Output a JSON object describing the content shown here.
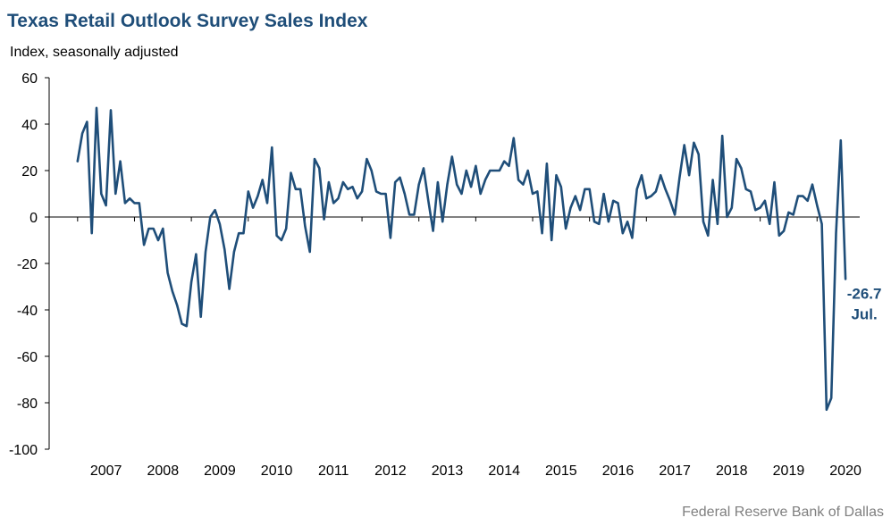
{
  "chart_data": {
    "type": "line",
    "title": "Texas Retail Outlook Survey Sales Index",
    "subtitle": "Index, seasonally adjusted",
    "xlabel": "",
    "ylabel": "",
    "ylim": [
      -100,
      60
    ],
    "yticks": [
      60,
      40,
      20,
      0,
      -20,
      -40,
      -60,
      -80,
      -100
    ],
    "ytick_labels": [
      "60",
      "40",
      "20",
      "0",
      "-20",
      "-40",
      "-60",
      "-80",
      "-100"
    ],
    "xlim": [
      "2006-07",
      "2020-10"
    ],
    "year_labels": [
      "2007",
      "2008",
      "2009",
      "2010",
      "2011",
      "2012",
      "2013",
      "2014",
      "2015",
      "2016",
      "2017",
      "2018",
      "2019",
      "2020"
    ],
    "grid": false,
    "legend": "none",
    "line_color": "#1f4e79",
    "series": [
      {
        "start": "2007-01",
        "frequency": "monthly",
        "values": [
          24,
          36,
          41,
          -7,
          47,
          10,
          5,
          46,
          10,
          24,
          6,
          8,
          6,
          6,
          -12,
          -5,
          -5,
          -10,
          -5,
          -24,
          -32,
          -38,
          -46,
          -47,
          -28,
          -16,
          -43,
          -15,
          0,
          3,
          -3,
          -14,
          -31,
          -15,
          -7,
          -7,
          11,
          4,
          9,
          16,
          6,
          30,
          -8,
          -10,
          -5,
          19,
          12,
          12,
          -4,
          -15,
          25,
          21,
          -1,
          15,
          6,
          8,
          15,
          12,
          13,
          8,
          11,
          25,
          20,
          11,
          10,
          10,
          -9,
          15,
          17,
          10,
          1,
          1,
          14,
          21,
          7,
          -6,
          15,
          -2,
          14,
          26,
          14,
          10,
          20,
          13,
          22,
          10,
          16,
          20,
          20,
          20,
          24,
          22,
          34,
          16,
          14,
          20,
          10,
          11,
          -7,
          23,
          -10,
          18,
          13,
          -5,
          4,
          9,
          3,
          12,
          12,
          -2,
          -3,
          10,
          -2,
          7,
          6,
          -7,
          -2,
          -9,
          12,
          18,
          8,
          9,
          11,
          18,
          12,
          7,
          1,
          17,
          31,
          18,
          32,
          27,
          -2,
          -8,
          16,
          -3,
          35,
          0,
          4,
          25,
          21,
          12,
          11,
          3,
          4,
          7,
          -3,
          15,
          -8,
          -6,
          2,
          1,
          9,
          9,
          7,
          14,
          5,
          -3,
          -83,
          -78,
          -7,
          33,
          -26.7
        ]
      }
    ],
    "annotation": {
      "value_label": "-26.7",
      "month_label": "Jul."
    }
  },
  "source": "Federal Reserve Bank of Dallas",
  "colors": {
    "line": "#1f4e79",
    "title": "#1f4e79",
    "axis": "#000000",
    "source": "#7f7f7f"
  }
}
